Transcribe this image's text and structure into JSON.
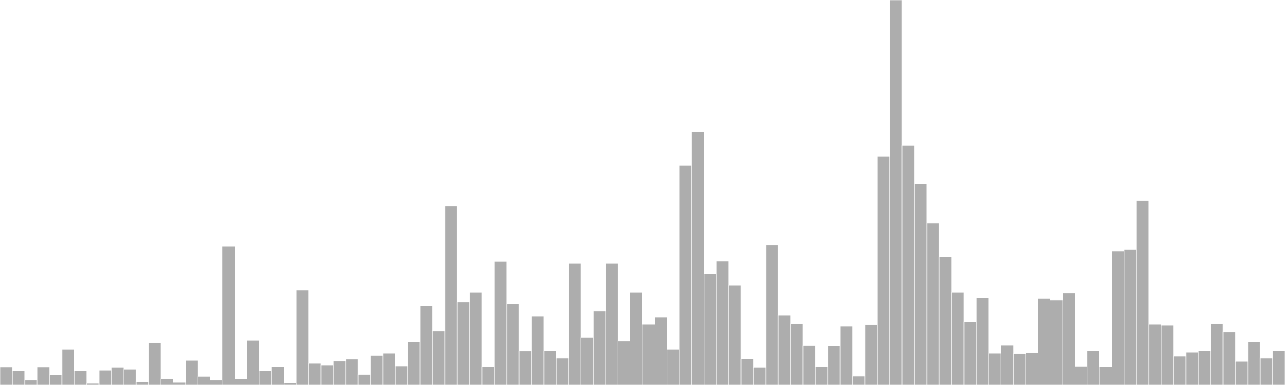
{
  "chart_data": {
    "type": "bar",
    "ylim": [
      0,
      100
    ],
    "grid": false,
    "legend": "none",
    "bar_color": "#adadad",
    "values": [
      4.6,
      3.8,
      1.3,
      4.6,
      2.7,
      9.3,
      3.7,
      0.4,
      3.9,
      4.5,
      4.1,
      0.9,
      10.9,
      1.7,
      0.8,
      6.4,
      2.2,
      1.3,
      36.0,
      1.6,
      11.6,
      3.8,
      4.7,
      0.5,
      24.6,
      5.6,
      5.2,
      6.3,
      6.7,
      2.8,
      7.6,
      8.3,
      5.0,
      11.3,
      20.6,
      14.0,
      46.5,
      21.5,
      24.1,
      4.8,
      32.0,
      21.1,
      8.8,
      17.9,
      8.9,
      7.1,
      31.6,
      12.4,
      19.2,
      31.6,
      11.5,
      24.1,
      15.8,
      17.7,
      9.3,
      57.0,
      65.9,
      29.0,
      32.1,
      26.0,
      6.8,
      4.5,
      36.3,
      18.1,
      15.9,
      10.3,
      4.8,
      10.2,
      15.2,
      2.3,
      15.7,
      59.3,
      100.0,
      62.2,
      52.2,
      42.1,
      33.3,
      24.1,
      16.5,
      22.6,
      8.3,
      10.4,
      8.2,
      8.4,
      22.4,
      22.1,
      24.0,
      4.9,
      9.0,
      4.7,
      34.8,
      35.1,
      48.0,
      15.8,
      15.6,
      7.5,
      8.5,
      9.0,
      15.9,
      13.8,
      6.2,
      11.3,
      7.1,
      8.9
    ]
  }
}
